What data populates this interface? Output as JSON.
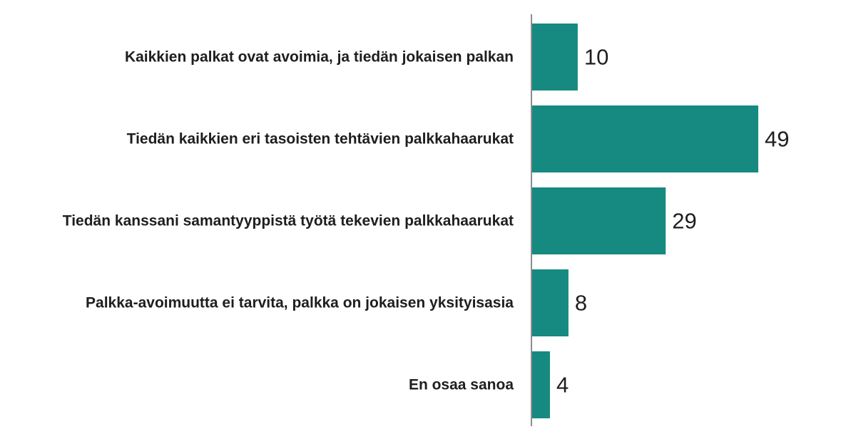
{
  "chart_data": {
    "type": "bar",
    "orientation": "horizontal",
    "categories": [
      "Kaikkien palkat ovat avoimia, ja tiedän jokaisen palkan",
      "Tiedän kaikkien eri tasoisten tehtävien palkkahaarukat",
      "Tiedän kanssani samantyyppistä työtä tekevien palkkahaarukat",
      "Palkka-avoimuutta ei tarvita, palkka on jokaisen yksityisasia",
      "En osaa sanoa"
    ],
    "values": [
      10,
      49,
      29,
      8,
      4
    ],
    "value_labels": [
      "10",
      "49",
      "29",
      "8",
      "4"
    ],
    "xlim": [
      0,
      49
    ],
    "grid": false,
    "legend": "none",
    "bar_color": "#168a80",
    "axis_color": "#8c8c8c",
    "text_color": "#1e1e1e"
  }
}
